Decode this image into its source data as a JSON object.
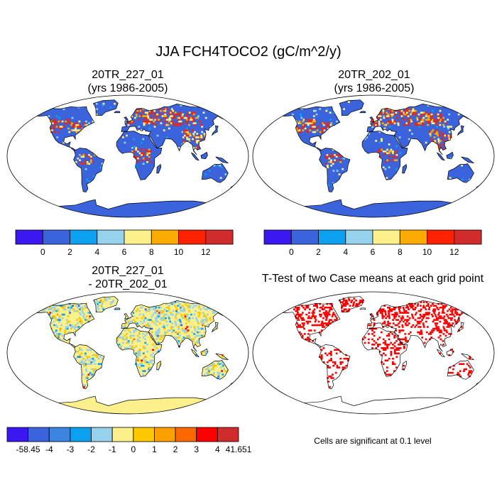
{
  "figure": {
    "title": "JJA FCH4TOCO2 (gC/m^2/y)",
    "note": "Cells are significant at 0.1 level"
  },
  "panels": [
    {
      "id": "case1",
      "title_line1": "20TR_227_01",
      "title_line2": "(yrs 1986-2005)"
    },
    {
      "id": "case2",
      "title_line1": "20TR_202_01",
      "title_line2": "(yrs 1986-2005)"
    },
    {
      "id": "diff",
      "title_line1": "20TR_227_01",
      "title_line2": "- 20TR_202_01"
    },
    {
      "id": "ttest",
      "title_line1": "T-Test of two Case means at each grid point",
      "title_line2": ""
    }
  ],
  "colorbars": {
    "abs": {
      "colors": [
        "#3c18f0",
        "#3b64dc",
        "#0ba0f0",
        "#96d2ec",
        "#fcf08c",
        "#fcac00",
        "#fc2200",
        "#d02c2c"
      ],
      "labels": [
        "0",
        "2",
        "4",
        "6",
        "8",
        "10",
        "12"
      ]
    },
    "diff": {
      "colors": [
        "#3c18f0",
        "#3b64dc",
        "#3b84e0",
        "#0ba0f0",
        "#96d2ec",
        "#fcf08c",
        "#fcc800",
        "#fca000",
        "#fc6800",
        "#fc0000",
        "#d02c2c"
      ],
      "labels": [
        "-58.45",
        "-4",
        "-3",
        "-2",
        "-1",
        "0",
        "1",
        "2",
        "3",
        "4",
        "41.651"
      ]
    }
  },
  "map_colors": {
    "ocean": "#ffffff",
    "land_abs": "#3b64dc",
    "land_diff": "#fcf08c",
    "significant": "#ff0000"
  }
}
